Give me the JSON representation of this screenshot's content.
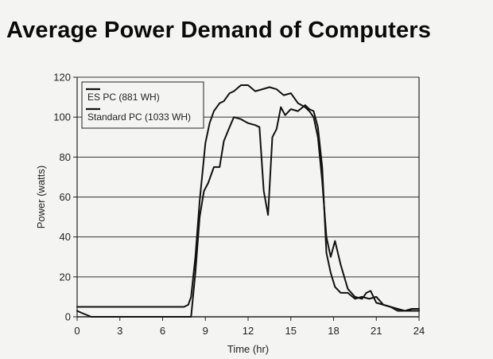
{
  "chart_data": {
    "type": "line",
    "title": "Average Power Demand of Computers",
    "xlabel": "Time (hr)",
    "ylabel": "Power (watts)",
    "xlim": [
      0,
      24
    ],
    "ylim": [
      0,
      120
    ],
    "xticks": [
      0,
      3,
      6,
      9,
      12,
      15,
      18,
      21,
      24
    ],
    "yticks": [
      0,
      20,
      40,
      60,
      80,
      100,
      120
    ],
    "grid": "horizontal",
    "legend_position": "top-left",
    "series": [
      {
        "name": "ES PC (881 WH)",
        "x": [
          0,
          0.3,
          1,
          3,
          6,
          7.6,
          8.0,
          8.3,
          8.6,
          8.9,
          9.2,
          9.6,
          10.0,
          10.3,
          10.7,
          11.0,
          11.5,
          12.0,
          12.5,
          12.8,
          13.1,
          13.4,
          13.7,
          14.0,
          14.3,
          14.6,
          15.0,
          15.5,
          16.0,
          16.3,
          16.6,
          16.9,
          17.2,
          17.5,
          17.8,
          18.1,
          18.5,
          19.0,
          19.5,
          20.0,
          20.5,
          21.0,
          21.5,
          22.0,
          22.5,
          23.0,
          24.0
        ],
        "y": [
          3,
          2,
          0,
          0,
          0,
          0,
          0,
          22,
          50,
          63,
          67,
          75,
          75,
          88,
          95,
          100,
          99,
          97,
          96,
          95,
          63,
          51,
          90,
          94,
          105,
          101,
          104,
          103,
          106,
          104,
          103,
          95,
          75,
          32,
          22,
          15,
          12,
          12,
          9,
          10,
          9,
          10,
          6,
          5,
          3,
          3,
          3
        ]
      },
      {
        "name": "Standard PC (1033 WH)",
        "x": [
          0,
          3,
          6,
          7.5,
          7.8,
          8.0,
          8.3,
          8.6,
          9.0,
          9.3,
          9.6,
          10.0,
          10.3,
          10.7,
          11.0,
          11.5,
          12.0,
          12.5,
          13.0,
          13.5,
          14.0,
          14.5,
          15.0,
          15.5,
          16.0,
          16.3,
          16.6,
          16.9,
          17.2,
          17.5,
          17.8,
          18.1,
          18.5,
          19.0,
          19.5,
          20.0,
          20.3,
          20.6,
          21.0,
          21.5,
          22.0,
          22.5,
          23.0,
          23.5,
          24.0
        ],
        "y": [
          5,
          5,
          5,
          5,
          6,
          10,
          30,
          58,
          87,
          97,
          103,
          107,
          108,
          112,
          113,
          116,
          116,
          113,
          114,
          115,
          114,
          111,
          112,
          107,
          105,
          103,
          100,
          90,
          68,
          40,
          30,
          38,
          26,
          14,
          10,
          9,
          12,
          13,
          7,
          6,
          5,
          4,
          3,
          4,
          4
        ]
      }
    ]
  }
}
